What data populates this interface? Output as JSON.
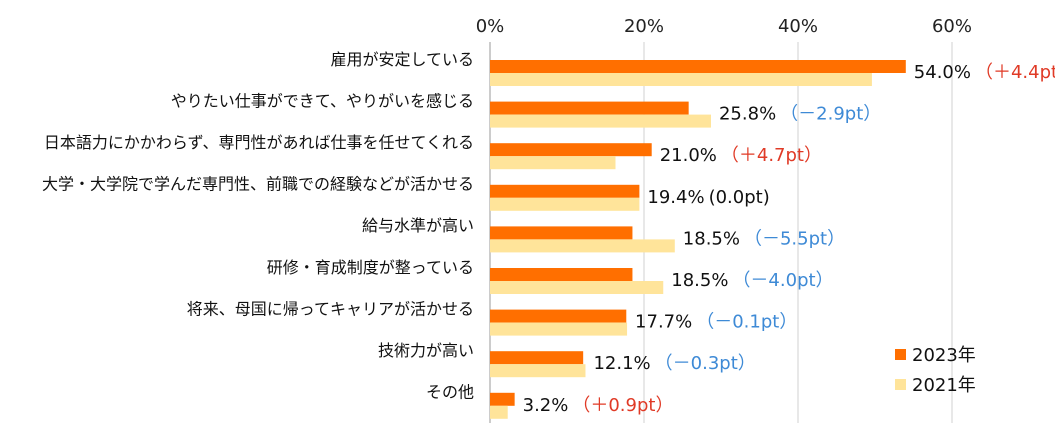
{
  "chart_data": {
    "type": "bar",
    "orientation": "horizontal",
    "xlim": [
      0,
      60
    ],
    "ticks": [
      "0%",
      "20%",
      "40%",
      "60%"
    ],
    "tick_values": [
      0,
      20,
      40,
      60
    ],
    "categories": [
      "雇用が安定している",
      "やりたい仕事ができて、やりがいを感じる",
      "日本語力にかかわらず、専門性があれば仕事を任せてくれる",
      "大学・大学院で学んだ専門性、前職での経験などが活かせる",
      "給与水準が高い",
      "研修・育成制度が整っている",
      "将来、母国に帰ってキャリアが活かせる",
      "技術力が高い",
      "その他"
    ],
    "series": [
      {
        "name": "2023年",
        "color": "#ff6f00",
        "values": [
          54.0,
          25.8,
          21.0,
          19.4,
          18.5,
          18.5,
          17.7,
          12.1,
          3.2
        ]
      },
      {
        "name": "2021年",
        "color": "#ffe49a",
        "values": [
          49.6,
          28.7,
          16.3,
          19.4,
          24.0,
          22.5,
          17.8,
          12.4,
          2.3
        ]
      }
    ],
    "value_labels": [
      "54.0%",
      "25.8%",
      "21.0%",
      "19.4%",
      "18.5%",
      "18.5%",
      "17.7%",
      "12.1%",
      "3.2%"
    ],
    "diff_labels": [
      "（＋4.4pt）",
      "（－2.9pt）",
      "（＋4.7pt）",
      "(0.0pt)",
      "（－5.5pt）",
      "（－4.0pt）",
      "（－0.1pt）",
      "（－0.3pt）",
      "（＋0.9pt）"
    ],
    "diff_signs": [
      "pos",
      "neg",
      "pos",
      "zero",
      "neg",
      "neg",
      "neg",
      "neg",
      "pos"
    ],
    "legend_position": "bottom-right",
    "grid": "vertical"
  }
}
